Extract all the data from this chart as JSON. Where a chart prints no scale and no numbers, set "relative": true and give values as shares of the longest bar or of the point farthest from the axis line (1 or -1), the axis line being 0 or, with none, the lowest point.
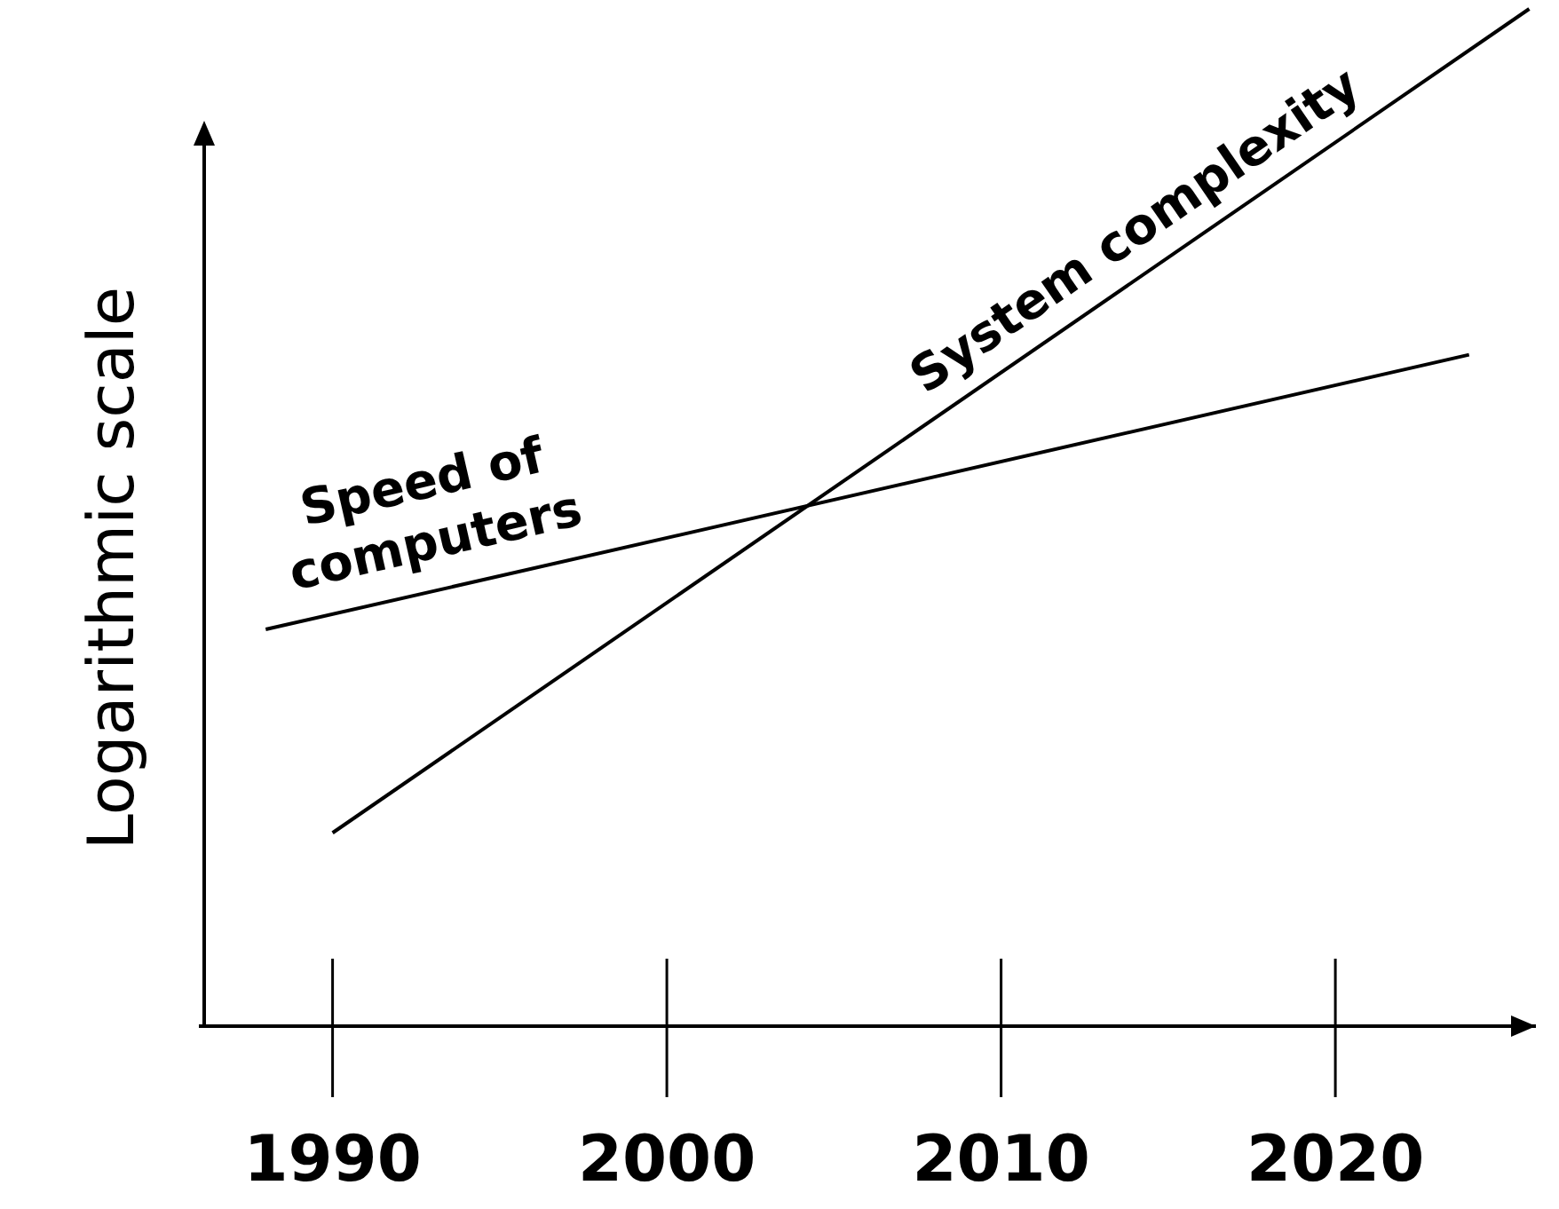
{
  "chart_data": {
    "type": "line",
    "ylabel": "Logarithmic scale",
    "xlim": [
      1986,
      2026
    ],
    "xticks": [
      1990,
      2000,
      2010,
      2020
    ],
    "relative": true,
    "series": [
      {
        "name": "Speed of computers",
        "color": "#000000",
        "x": [
          1988,
          2024
        ],
        "values": [
          0.39,
          0.66
        ]
      },
      {
        "name": "System complexity",
        "color": "#000000",
        "x": [
          1990,
          2025.8
        ],
        "values": [
          0.19,
          1
        ]
      }
    ]
  }
}
